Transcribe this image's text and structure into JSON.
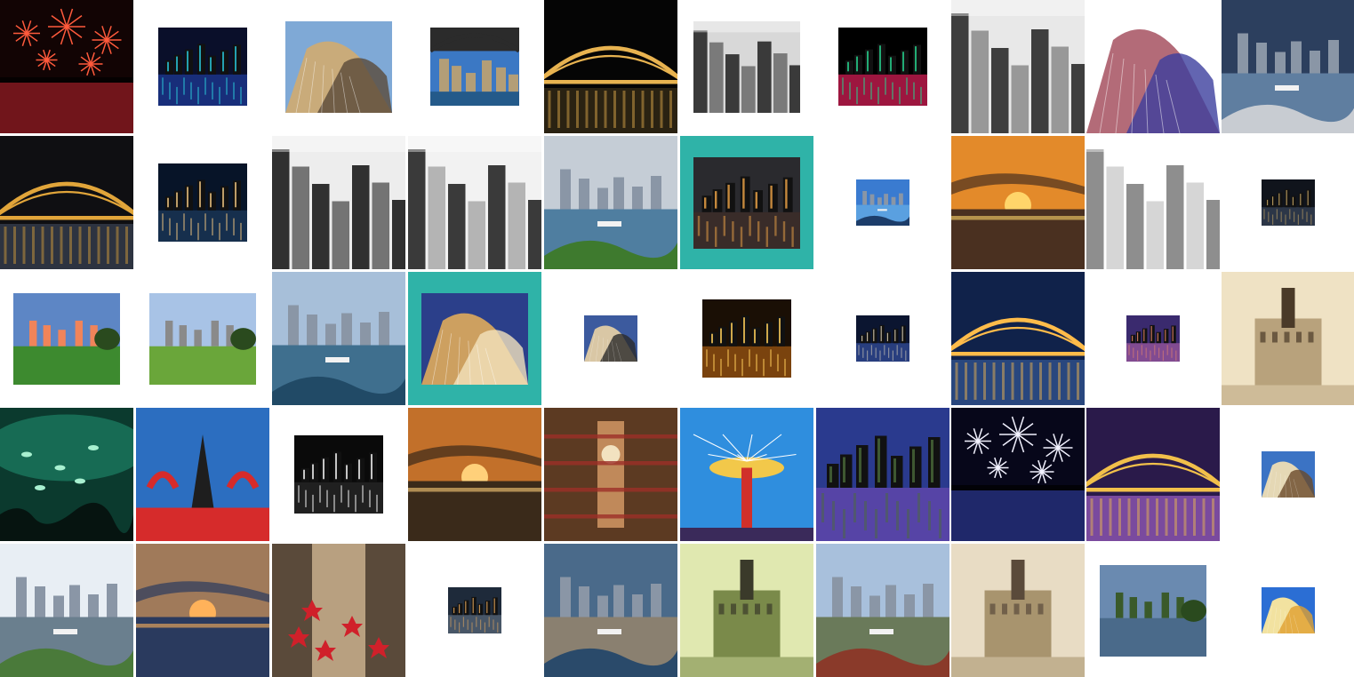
{
  "gallery": {
    "accent_color": "#2fb3a8",
    "rows": [
      [
        {
          "name": "photo-fireworks-harbour",
          "size": "full",
          "scene": "fireworks",
          "colors": [
            "#120404",
            "#b0222c",
            "#ff5a3c"
          ]
        },
        {
          "name": "photo-opera-house-light-beams",
          "size": "small",
          "scene": "night",
          "colors": [
            "#0a0f2a",
            "#1e3c9c",
            "#29c6d8"
          ]
        },
        {
          "name": "photo-opera-house-shells-closeup",
          "size": "medium",
          "scene": "architecture",
          "colors": [
            "#7fa9d6",
            "#c9ab7a",
            "#5a4a3a"
          ]
        },
        {
          "name": "photo-harbour-bridge-underside",
          "size": "small",
          "scene": "city",
          "colors": [
            "#3b78c4",
            "#2b2b2b",
            "#c9a46a"
          ]
        },
        {
          "name": "photo-harbour-bridge-night",
          "size": "full",
          "scene": "bridge",
          "colors": [
            "#050505",
            "#2a2212",
            "#e8b350"
          ]
        },
        {
          "name": "photo-cbd-black-white",
          "size": "medium",
          "scene": "bw",
          "colors": [
            "#d8d8d8",
            "#6a6a6a",
            "#1e1e1e"
          ]
        },
        {
          "name": "photo-opera-house-vivid-lights",
          "size": "small",
          "scene": "night",
          "colors": [
            "#000000",
            "#e0205a",
            "#27d38f"
          ]
        },
        {
          "name": "photo-street-bicycles-bw",
          "size": "full",
          "scene": "bw",
          "colors": [
            "#e8e8e8",
            "#8a8a8a",
            "#202020"
          ]
        },
        {
          "name": "photo-opera-house-tiles-purple",
          "size": "full",
          "scene": "architecture",
          "colors": [
            "#ffffff",
            "#b36b78",
            "#3c3f9e"
          ]
        },
        {
          "name": "photo-cruise-ship-harbour",
          "size": "full",
          "scene": "harbour",
          "colors": [
            "#2c3f5e",
            "#5f7ea0",
            "#c8ccd2"
          ]
        }
      ],
      [
        {
          "name": "photo-harbour-bridge-dusk",
          "size": "full",
          "scene": "bridge",
          "colors": [
            "#0f0f12",
            "#2d3340",
            "#e1a53a"
          ]
        },
        {
          "name": "photo-opera-house-night-lit",
          "size": "small",
          "scene": "night",
          "colors": [
            "#071428",
            "#1d3a5c",
            "#e8c07e"
          ]
        },
        {
          "name": "photo-skyscrapers-looking-up-bw",
          "size": "full",
          "scene": "bw",
          "colors": [
            "#ededed",
            "#5e5e5e",
            "#0e0e0e"
          ]
        },
        {
          "name": "photo-pedestrians-from-above-bw",
          "size": "full",
          "scene": "bw",
          "colors": [
            "#f2f2f2",
            "#a9a9a9",
            "#1a1a1a"
          ]
        },
        {
          "name": "photo-circular-quay-aerial",
          "size": "full",
          "scene": "harbour",
          "colors": [
            "#c5cdd6",
            "#4f7ea0",
            "#3e7a2e"
          ]
        },
        {
          "name": "photo-darling-harbour-night",
          "size": "medium",
          "scene": "night",
          "colors": [
            "#2a2a2e",
            "#402d28",
            "#f1a648"
          ],
          "selected": true
        },
        {
          "name": "photo-skyline-blue-hour",
          "size": "tiny",
          "scene": "harbour",
          "colors": [
            "#3a7bd0",
            "#5aa0e0",
            "#1c3d6a"
          ]
        },
        {
          "name": "photo-sunset-beach-rocks",
          "size": "full",
          "scene": "sunset",
          "colors": [
            "#4a3020",
            "#e38a2a",
            "#ffd56a"
          ]
        },
        {
          "name": "photo-opera-house-shell-tiles-bw",
          "size": "full",
          "scene": "bw",
          "colors": [
            "#ffffff",
            "#cfcfcf",
            "#7a7a7a"
          ]
        },
        {
          "name": "photo-storm-over-city-night",
          "size": "tiny",
          "scene": "night",
          "colors": [
            "#10141c",
            "#39445a",
            "#d2b06a"
          ]
        }
      ],
      [
        {
          "name": "photo-skyline-park-sunset",
          "size": "medium",
          "scene": "park",
          "colors": [
            "#5d86c5",
            "#f0845a",
            "#3d8a2f"
          ]
        },
        {
          "name": "photo-park-path-skyline",
          "size": "medium",
          "scene": "park",
          "colors": [
            "#a8c3e6",
            "#8a8a8a",
            "#6aa63a"
          ]
        },
        {
          "name": "photo-harbour-cloudy-day",
          "size": "full",
          "scene": "harbour",
          "colors": [
            "#a7bfd9",
            "#3f6f8e",
            "#214a66"
          ]
        },
        {
          "name": "photo-opera-house-sails-golden",
          "size": "medium",
          "scene": "architecture",
          "colors": [
            "#2b3f8a",
            "#cda060",
            "#f2e2bd"
          ],
          "selected": true
        },
        {
          "name": "photo-opera-house-corner-sky",
          "size": "tiny",
          "scene": "architecture",
          "colors": [
            "#3c5a9e",
            "#d9c7a5",
            "#2a2a2a"
          ]
        },
        {
          "name": "photo-city-lights-aerial-night",
          "size": "small",
          "scene": "night",
          "colors": [
            "#1a0f05",
            "#a45a12",
            "#ffce5a"
          ]
        },
        {
          "name": "photo-opera-house-skyline-night",
          "size": "tiny",
          "scene": "night",
          "colors": [
            "#0b1530",
            "#3450a0",
            "#e8dcc0"
          ]
        },
        {
          "name": "photo-harbour-bridge-blue-night",
          "size": "full",
          "scene": "bridge",
          "colors": [
            "#10224a",
            "#29477e",
            "#ffbc4a"
          ]
        },
        {
          "name": "photo-skyline-purple-dusk",
          "size": "tiny",
          "scene": "night",
          "colors": [
            "#3a2a6e",
            "#a05aa0",
            "#f08a6a"
          ]
        },
        {
          "name": "photo-vintage-town-hall-sepia",
          "size": "full",
          "scene": "sepia",
          "colors": [
            "#efe2c4",
            "#b8a27c",
            "#4a3a28"
          ]
        }
      ],
      [
        {
          "name": "photo-aquarium-underwater",
          "size": "full",
          "scene": "aquarium",
          "colors": [
            "#0b3a2e",
            "#1f8c6e",
            "#a8f0d0"
          ]
        },
        {
          "name": "photo-sculpture-sky-red",
          "size": "full",
          "scene": "sculpture",
          "colors": [
            "#2c6ec0",
            "#d62b2b",
            "#e5e5e5"
          ]
        },
        {
          "name": "photo-opera-house-dark-water",
          "size": "small",
          "scene": "night",
          "colors": [
            "#0a0a0a",
            "#2a2a2a",
            "#f2f2f2"
          ]
        },
        {
          "name": "photo-sunset-clouds-orange",
          "size": "full",
          "scene": "sunset",
          "colors": [
            "#3a2a1a",
            "#c2702a",
            "#ffd07a"
          ]
        },
        {
          "name": "photo-qvb-interior-clock",
          "size": "full",
          "scene": "interior",
          "colors": [
            "#5c3a22",
            "#c0895a",
            "#9c3028"
          ]
        },
        {
          "name": "photo-swing-ride-blue-sky",
          "size": "full",
          "scene": "fair",
          "colors": [
            "#2f8ede",
            "#f2c84a",
            "#d0302a"
          ]
        },
        {
          "name": "photo-sydney-tower-fountain-dusk",
          "size": "full",
          "scene": "night",
          "colors": [
            "#2a3a8e",
            "#6a48b0",
            "#4a6a3a"
          ]
        },
        {
          "name": "photo-fireworks-skyline-night",
          "size": "full",
          "scene": "fireworks",
          "colors": [
            "#07071a",
            "#3040a0",
            "#f2f2ff"
          ]
        },
        {
          "name": "photo-harbour-bridge-luna-park-dusk",
          "size": "full",
          "scene": "bridge",
          "colors": [
            "#2a1a4a",
            "#7a4a9e",
            "#f2c04a"
          ]
        },
        {
          "name": "photo-opera-house-small-sky",
          "size": "tiny",
          "scene": "architecture",
          "colors": [
            "#3b73c4",
            "#e5d8b5",
            "#6a4a2a"
          ]
        }
      ],
      [
        {
          "name": "photo-harbourside-houses-boats",
          "size": "full",
          "scene": "harbour",
          "colors": [
            "#e8eef4",
            "#6a7f8e",
            "#4a7a3a"
          ]
        },
        {
          "name": "photo-bats-over-bridge-sunset",
          "size": "full",
          "scene": "sunset",
          "colors": [
            "#2a3a5e",
            "#a07a5a",
            "#ffb25a"
          ]
        },
        {
          "name": "photo-christmas-stars-street",
          "size": "full",
          "scene": "street",
          "colors": [
            "#5a4a3a",
            "#b8a080",
            "#d0202a"
          ]
        },
        {
          "name": "photo-skyline-reflection-small",
          "size": "tiny",
          "scene": "night",
          "colors": [
            "#1e2a3a",
            "#5a6a7a",
            "#f0b060"
          ]
        },
        {
          "name": "photo-sydney-aerial-peninsula",
          "size": "full",
          "scene": "harbour",
          "colors": [
            "#4a6a8a",
            "#8a8070",
            "#2a4a6a"
          ]
        },
        {
          "name": "photo-vintage-tram-tinted",
          "size": "full",
          "scene": "sepia",
          "colors": [
            "#e0e8b0",
            "#7a8a4a",
            "#3a3a2a"
          ]
        },
        {
          "name": "photo-st-marys-cathedral-harbour",
          "size": "full",
          "scene": "harbour",
          "colors": [
            "#a8c0dc",
            "#6a7a5a",
            "#8a3a2a"
          ]
        },
        {
          "name": "photo-bridge-construction-sepia",
          "size": "full",
          "scene": "sepia",
          "colors": [
            "#e8dcc4",
            "#a8946e",
            "#5a4a3a"
          ]
        },
        {
          "name": "photo-tree-harbour-foreshore",
          "size": "medium",
          "scene": "park",
          "colors": [
            "#6a8ab0",
            "#3a5a2a",
            "#4a6a8a"
          ]
        },
        {
          "name": "photo-opera-house-tiny-sunny",
          "size": "tiny",
          "scene": "architecture",
          "colors": [
            "#2b6ed4",
            "#f2e2a0",
            "#e0a030"
          ]
        }
      ]
    ]
  }
}
